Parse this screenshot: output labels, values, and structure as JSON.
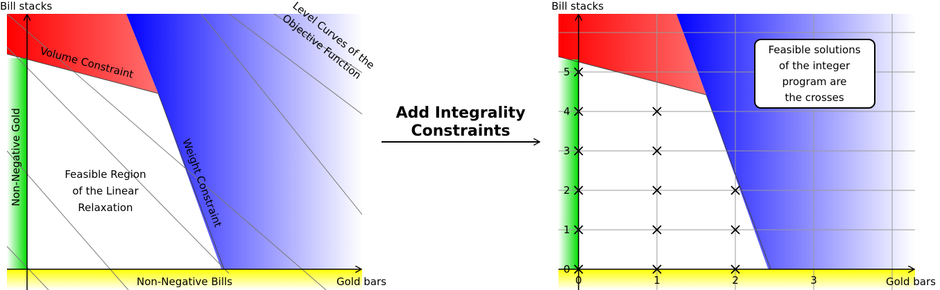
{
  "left_panel": {
    "y_axis_label": "Bill stacks",
    "x_axis_label": "Gold bars",
    "labels": {
      "volume_constraint": "Volume Constraint",
      "weight_constraint": "Weight Constraint",
      "non_negative_gold": "Non-Negative Gold",
      "non_negative_bills": "Non-Negative Bills",
      "level_curves_line1": "Level Curves of the",
      "level_curves_line2": "Objective Function",
      "feasible_region_line1": "Feasible Region",
      "feasible_region_line2": "of the Linear",
      "feasible_region_line3": "Relaxation"
    }
  },
  "middle_arrow": {
    "line1": "Add Integrality",
    "line2": "Constraints"
  },
  "right_panel": {
    "y_axis_label": "Bill stacks",
    "x_axis_label": "Gold bars",
    "x_ticks": [
      "0",
      "1",
      "2",
      "3"
    ],
    "y_ticks": [
      "0",
      "1",
      "2",
      "3",
      "4",
      "5"
    ],
    "note_lines": [
      "Feasible solutions",
      "of the integer",
      "program are",
      "the crosses"
    ],
    "integer_points": [
      [
        0,
        0
      ],
      [
        0,
        1
      ],
      [
        0,
        2
      ],
      [
        0,
        3
      ],
      [
        0,
        4
      ],
      [
        0,
        5
      ],
      [
        1,
        0
      ],
      [
        1,
        1
      ],
      [
        1,
        2
      ],
      [
        1,
        3
      ],
      [
        1,
        4
      ],
      [
        2,
        0
      ],
      [
        2,
        1
      ],
      [
        2,
        2
      ]
    ]
  },
  "colors": {
    "volume_red": "#ff0000",
    "weight_blue": "#0000ff",
    "gold_green": "#00dd00",
    "bills_yellow": "#ffff00"
  }
}
